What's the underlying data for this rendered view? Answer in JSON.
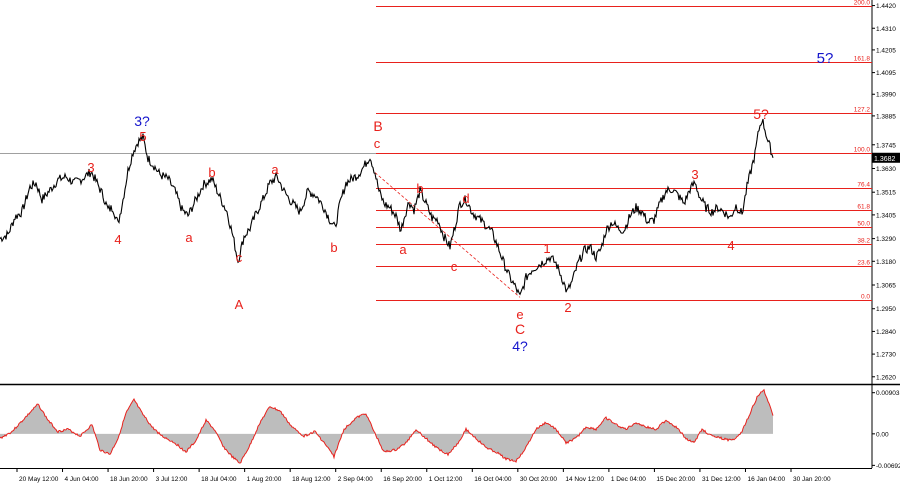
{
  "chart_data": {
    "type": "line",
    "instrument_last_price": "1.3682",
    "price_axis": {
      "ylim": [
        1.2585,
        1.4447
      ],
      "ticks": [
        "1.4420",
        "1.4310",
        "1.4205",
        "1.4095",
        "1.3990",
        "1.3885",
        "1.3745",
        "1.3630",
        "1.3515",
        "1.3405",
        "1.3290",
        "1.3180",
        "1.3065",
        "1.2950",
        "1.2840",
        "1.2730",
        "1.2620"
      ]
    },
    "time_axis": {
      "labels": [
        "20 May 12:00",
        "4 Jun 04:00",
        "18 Jun 20:00",
        "3 Jul 12:00",
        "18 Jul 04:00",
        "1 Aug 20:00",
        "18 Aug 12:00",
        "2 Sep 04:00",
        "16 Sep 20:00",
        "1 Oct 12:00",
        "16 Oct 04:00",
        "30 Oct 20:00",
        "14 Nov 12:00",
        "1 Dec 04:00",
        "15 Dec 20:00",
        "31 Dec 12:00",
        "16 Jan 04:00",
        "30 Jan 20:00"
      ]
    },
    "fibonacci": {
      "levels": [
        {
          "label": "200.0",
          "price": 1.442
        },
        {
          "label": "161.8",
          "price": 1.4145
        },
        {
          "label": "127.2",
          "price": 1.3898
        },
        {
          "label": "100.0",
          "price": 1.3704
        },
        {
          "label": "76.4",
          "price": 1.3535
        },
        {
          "label": "61.8",
          "price": 1.3431
        },
        {
          "label": "50.0",
          "price": 1.3347
        },
        {
          "label": "38.2",
          "price": 1.3262
        },
        {
          "label": "23.6",
          "price": 1.3158
        },
        {
          "label": "0.0",
          "price": 1.299
        }
      ]
    },
    "price_series": [
      [
        0,
        1.329
      ],
      [
        8,
        1.331
      ],
      [
        15,
        1.3395
      ],
      [
        22,
        1.342
      ],
      [
        30,
        1.354
      ],
      [
        36,
        1.356
      ],
      [
        42,
        1.348
      ],
      [
        50,
        1.3525
      ],
      [
        58,
        1.3575
      ],
      [
        66,
        1.359
      ],
      [
        74,
        1.356
      ],
      [
        82,
        1.358
      ],
      [
        91,
        1.3615
      ],
      [
        96,
        1.357
      ],
      [
        103,
        1.35
      ],
      [
        108,
        1.343
      ],
      [
        113,
        1.344
      ],
      [
        118,
        1.336
      ],
      [
        123,
        1.348
      ],
      [
        128,
        1.362
      ],
      [
        133,
        1.371
      ],
      [
        138,
        1.376
      ],
      [
        143,
        1.378
      ],
      [
        148,
        1.368
      ],
      [
        153,
        1.365
      ],
      [
        160,
        1.36
      ],
      [
        168,
        1.358
      ],
      [
        175,
        1.352
      ],
      [
        182,
        1.343
      ],
      [
        188,
        1.34
      ],
      [
        195,
        1.347
      ],
      [
        203,
        1.355
      ],
      [
        212,
        1.358
      ],
      [
        220,
        1.349
      ],
      [
        227,
        1.342
      ],
      [
        233,
        1.33
      ],
      [
        238,
        1.318
      ],
      [
        244,
        1.33
      ],
      [
        250,
        1.334
      ],
      [
        256,
        1.341
      ],
      [
        263,
        1.348
      ],
      [
        270,
        1.356
      ],
      [
        277,
        1.359
      ],
      [
        284,
        1.352
      ],
      [
        291,
        1.347
      ],
      [
        300,
        1.342
      ],
      [
        308,
        1.352
      ],
      [
        316,
        1.35
      ],
      [
        324,
        1.344
      ],
      [
        330,
        1.338
      ],
      [
        335,
        1.334
      ],
      [
        340,
        1.346
      ],
      [
        346,
        1.356
      ],
      [
        352,
        1.358
      ],
      [
        358,
        1.36
      ],
      [
        364,
        1.364
      ],
      [
        370,
        1.369
      ],
      [
        375,
        1.361
      ],
      [
        379,
        1.352
      ],
      [
        384,
        1.346
      ],
      [
        390,
        1.344
      ],
      [
        396,
        1.34
      ],
      [
        401,
        1.333
      ],
      [
        404,
        1.339
      ],
      [
        409,
        1.347
      ],
      [
        414,
        1.343
      ],
      [
        420,
        1.352
      ],
      [
        426,
        1.346
      ],
      [
        432,
        1.339
      ],
      [
        438,
        1.338
      ],
      [
        444,
        1.33
      ],
      [
        450,
        1.325
      ],
      [
        455,
        1.335
      ],
      [
        460,
        1.346
      ],
      [
        466,
        1.348
      ],
      [
        472,
        1.342
      ],
      [
        478,
        1.339
      ],
      [
        485,
        1.336
      ],
      [
        492,
        1.332
      ],
      [
        498,
        1.325
      ],
      [
        504,
        1.317
      ],
      [
        510,
        1.31
      ],
      [
        516,
        1.305
      ],
      [
        520,
        1.3005
      ],
      [
        526,
        1.31
      ],
      [
        532,
        1.314
      ],
      [
        538,
        1.316
      ],
      [
        544,
        1.318
      ],
      [
        550,
        1.32
      ],
      [
        556,
        1.317
      ],
      [
        562,
        1.31
      ],
      [
        567,
        1.303
      ],
      [
        572,
        1.308
      ],
      [
        578,
        1.317
      ],
      [
        584,
        1.323
      ],
      [
        590,
        1.325
      ],
      [
        596,
        1.32
      ],
      [
        601,
        1.324
      ],
      [
        606,
        1.333
      ],
      [
        612,
        1.337
      ],
      [
        618,
        1.334
      ],
      [
        624,
        1.333
      ],
      [
        630,
        1.34
      ],
      [
        636,
        1.344
      ],
      [
        642,
        1.342
      ],
      [
        648,
        1.337
      ],
      [
        654,
        1.338
      ],
      [
        660,
        1.346
      ],
      [
        666,
        1.352
      ],
      [
        672,
        1.353
      ],
      [
        678,
        1.35
      ],
      [
        684,
        1.346
      ],
      [
        690,
        1.353
      ],
      [
        695,
        1.356
      ],
      [
        700,
        1.349
      ],
      [
        706,
        1.344
      ],
      [
        712,
        1.342
      ],
      [
        718,
        1.344
      ],
      [
        724,
        1.342
      ],
      [
        730,
        1.339
      ],
      [
        736,
        1.345
      ],
      [
        742,
        1.341
      ],
      [
        747,
        1.354
      ],
      [
        751,
        1.362
      ],
      [
        755,
        1.37
      ],
      [
        759,
        1.382
      ],
      [
        762,
        1.387
      ],
      [
        765,
        1.382
      ],
      [
        768,
        1.376
      ],
      [
        771,
        1.372
      ],
      [
        773,
        1.3682
      ]
    ],
    "wave_labels": [
      {
        "text": "3?",
        "color": "#1515cc"
      },
      {
        "text": "5",
        "color": "#e8211c"
      },
      {
        "text": "3",
        "color": "#e8211c"
      },
      {
        "text": "4",
        "color": "#e8211c"
      },
      {
        "text": "a",
        "color": "#e8211c"
      },
      {
        "text": "b",
        "color": "#e8211c"
      },
      {
        "text": "c",
        "color": "#e8211c"
      },
      {
        "text": "A",
        "color": "#e8211c"
      },
      {
        "text": "a",
        "color": "#e8211c"
      },
      {
        "text": "b",
        "color": "#e8211c"
      },
      {
        "text": "B",
        "color": "#e8211c"
      },
      {
        "text": "c",
        "color": "#e8211c"
      },
      {
        "text": "a",
        "color": "#e8211c"
      },
      {
        "text": "b",
        "color": "#e8211c"
      },
      {
        "text": "c",
        "color": "#e8211c"
      },
      {
        "text": "d",
        "color": "#e8211c"
      },
      {
        "text": "e",
        "color": "#e8211c"
      },
      {
        "text": "C",
        "color": "#e8211c"
      },
      {
        "text": "4?",
        "color": "#1515cc"
      },
      {
        "text": "1",
        "color": "#e8211c"
      },
      {
        "text": "2",
        "color": "#e8211c"
      },
      {
        "text": "3",
        "color": "#e8211c"
      },
      {
        "text": "4",
        "color": "#e8211c"
      },
      {
        "text": "5?",
        "color": "#e8211c"
      },
      {
        "text": "5?",
        "color": "#1515cc"
      }
    ],
    "oscillator": {
      "ylim": [
        -0.0075,
        0.0105
      ],
      "ticks": [
        "0.00903",
        "0.00",
        "-0.00692"
      ],
      "values": [
        [
          0,
          -0.001
        ],
        [
          12,
          0.0005
        ],
        [
          25,
          0.0035
        ],
        [
          38,
          0.0065
        ],
        [
          48,
          0.003
        ],
        [
          58,
          0.0005
        ],
        [
          68,
          0.001
        ],
        [
          80,
          -0.0005
        ],
        [
          92,
          0.002
        ],
        [
          100,
          -0.0035
        ],
        [
          110,
          -0.0045
        ],
        [
          118,
          -0.001
        ],
        [
          126,
          0.0045
        ],
        [
          134,
          0.0075
        ],
        [
          142,
          0.0045
        ],
        [
          152,
          0.0015
        ],
        [
          162,
          -0.0005
        ],
        [
          175,
          -0.002
        ],
        [
          186,
          -0.004
        ],
        [
          196,
          -0.0015
        ],
        [
          206,
          0.003
        ],
        [
          214,
          0.001
        ],
        [
          224,
          -0.003
        ],
        [
          232,
          -0.005
        ],
        [
          240,
          -0.0065
        ],
        [
          250,
          -0.0025
        ],
        [
          260,
          0.0025
        ],
        [
          270,
          0.006
        ],
        [
          280,
          0.005
        ],
        [
          292,
          0.0015
        ],
        [
          304,
          -0.0005
        ],
        [
          315,
          0.0005
        ],
        [
          326,
          -0.0025
        ],
        [
          334,
          -0.005
        ],
        [
          344,
          0.001
        ],
        [
          356,
          0.0035
        ],
        [
          366,
          0.0045
        ],
        [
          374,
          0.0005
        ],
        [
          384,
          -0.004
        ],
        [
          396,
          -0.0035
        ],
        [
          406,
          -0.002
        ],
        [
          416,
          0.001
        ],
        [
          426,
          -0.001
        ],
        [
          436,
          -0.003
        ],
        [
          448,
          -0.0045
        ],
        [
          458,
          -0.002
        ],
        [
          466,
          0.001
        ],
        [
          476,
          -0.001
        ],
        [
          486,
          -0.003
        ],
        [
          496,
          -0.004
        ],
        [
          506,
          -0.0055
        ],
        [
          516,
          -0.006
        ],
        [
          526,
          -0.003
        ],
        [
          536,
          0.001
        ],
        [
          546,
          0.0025
        ],
        [
          556,
          0.001
        ],
        [
          566,
          -0.002
        ],
        [
          576,
          -0.001
        ],
        [
          586,
          0.0015
        ],
        [
          596,
          0.001
        ],
        [
          606,
          0.0035
        ],
        [
          616,
          0.002
        ],
        [
          626,
          0.001
        ],
        [
          636,
          0.0025
        ],
        [
          646,
          0.0015
        ],
        [
          656,
          0.001
        ],
        [
          666,
          0.003
        ],
        [
          676,
          0.0015
        ],
        [
          686,
          -0.001
        ],
        [
          694,
          -0.002
        ],
        [
          702,
          0.001
        ],
        [
          712,
          -0.0005
        ],
        [
          722,
          -0.001
        ],
        [
          732,
          -0.0015
        ],
        [
          742,
          0.0005
        ],
        [
          750,
          0.0045
        ],
        [
          758,
          0.0085
        ],
        [
          764,
          0.0095
        ],
        [
          770,
          0.006
        ],
        [
          773,
          0.004
        ]
      ]
    }
  }
}
